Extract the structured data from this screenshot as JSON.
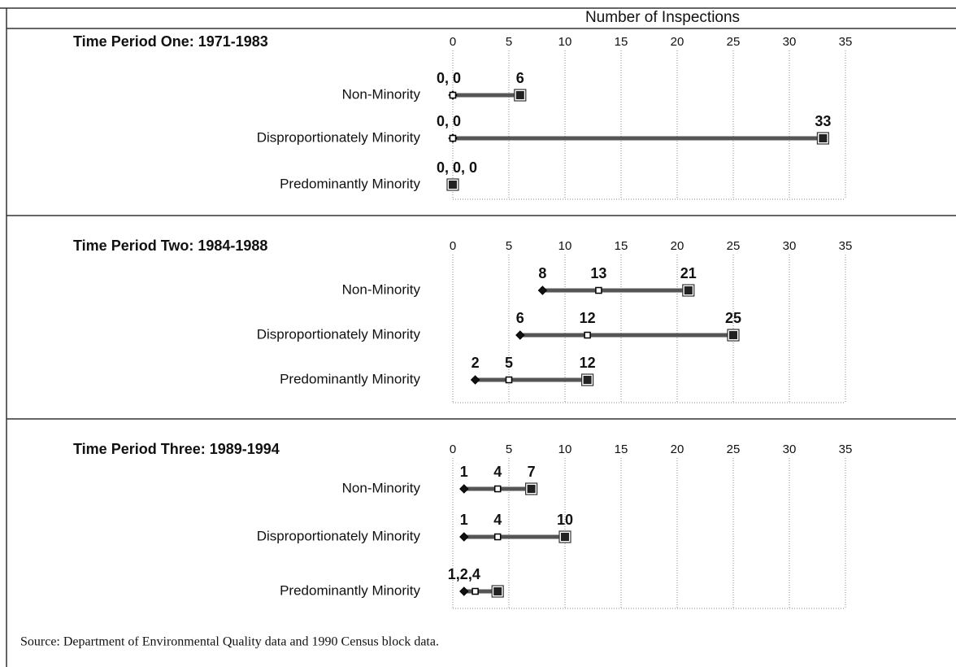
{
  "header": {
    "axis_title": "Number of Inspections"
  },
  "chart_data": [
    {
      "type": "range",
      "title": "Time Period One: 1971-1983",
      "categories": [
        "Non-Minority",
        "Disproportionately Minority",
        "Predominantly Minority"
      ],
      "xlim": [
        0,
        35
      ],
      "xticks": [
        0,
        5,
        10,
        15,
        20,
        25,
        30,
        35
      ],
      "grid": true,
      "series": [
        {
          "name": "min",
          "color": "#111111",
          "values": [
            0,
            0,
            0
          ],
          "value_labels": [
            "0, 0",
            "0, 0",
            "0, 0, 0"
          ]
        },
        {
          "name": "median",
          "color": "#ffffff",
          "values": [
            0,
            0,
            0
          ],
          "value_labels": [
            null,
            null,
            null
          ]
        },
        {
          "name": "max",
          "color": "#222222",
          "values": [
            6,
            33,
            0
          ],
          "value_labels": [
            "6",
            "33",
            null
          ]
        }
      ]
    },
    {
      "type": "range",
      "title": "Time Period Two:  1984-1988",
      "categories": [
        "Non-Minority",
        "Disproportionately Minority",
        "Predominantly Minority"
      ],
      "xlim": [
        0,
        35
      ],
      "xticks": [
        0,
        5,
        10,
        15,
        20,
        25,
        30,
        35
      ],
      "grid": true,
      "series": [
        {
          "name": "min",
          "color": "#111111",
          "values": [
            8,
            6,
            2
          ]
        },
        {
          "name": "median",
          "color": "#ffffff",
          "values": [
            13,
            12,
            5
          ]
        },
        {
          "name": "max",
          "color": "#222222",
          "values": [
            21,
            25,
            12
          ]
        }
      ]
    },
    {
      "type": "range",
      "title": "Time Period Three:  1989-1994",
      "categories": [
        "Non-Minority",
        "Disproportionately Minority",
        "Predominantly Minority"
      ],
      "xlim": [
        0,
        35
      ],
      "xticks": [
        0,
        5,
        10,
        15,
        20,
        25,
        30,
        35
      ],
      "grid": true,
      "series": [
        {
          "name": "min",
          "color": "#111111",
          "values": [
            1,
            1,
            1
          ],
          "value_labels": [
            "1",
            "1",
            "1,2,4"
          ]
        },
        {
          "name": "median",
          "color": "#ffffff",
          "values": [
            4,
            4,
            2
          ],
          "value_labels": [
            "4",
            "4",
            null
          ]
        },
        {
          "name": "max",
          "color": "#222222",
          "values": [
            7,
            10,
            4
          ],
          "value_labels": [
            "7",
            "10",
            null
          ]
        }
      ]
    }
  ],
  "footer": {
    "source": "Source: Department of Environmental Quality data and 1990 Census block data."
  }
}
